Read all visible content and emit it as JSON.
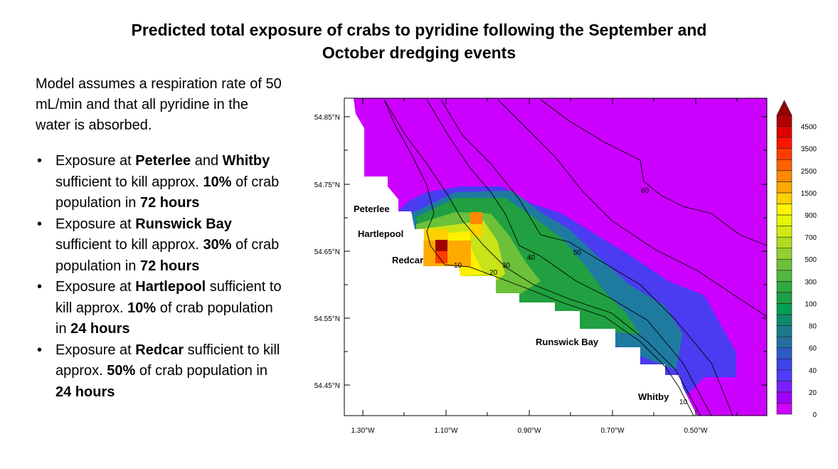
{
  "title": {
    "line1": "Predicted total exposure of crabs to pyridine following the September and",
    "line2": "October dredging events"
  },
  "intro": "Model assumes a respiration rate of 50 mL/min and that all pyridine in the water is absorbed.",
  "bullets": [
    [
      {
        "t": "Exposure at ",
        "b": false
      },
      {
        "t": "Peterlee",
        "b": true
      },
      {
        "t": " and ",
        "b": false
      },
      {
        "t": "Whitby",
        "b": true
      },
      {
        "t": " sufficient to kill approx. ",
        "b": false
      },
      {
        "t": "10%",
        "b": true
      },
      {
        "t": " of crab population in ",
        "b": false
      },
      {
        "t": "72 hours",
        "b": true
      }
    ],
    [
      {
        "t": "Exposure at ",
        "b": false
      },
      {
        "t": "Runswick Bay",
        "b": true
      },
      {
        "t": " sufficient to kill approx. ",
        "b": false
      },
      {
        "t": "30%",
        "b": true
      },
      {
        "t": " of crab population in ",
        "b": false
      },
      {
        "t": "72 hours",
        "b": true
      }
    ],
    [
      {
        "t": "Exposure at ",
        "b": false
      },
      {
        "t": "Hartlepool",
        "b": true
      },
      {
        "t": " sufficient to kill approx. ",
        "b": false
      },
      {
        "t": "10%",
        "b": true
      },
      {
        "t": " of crab population in ",
        "b": false
      },
      {
        "t": "24 hours",
        "b": true
      }
    ],
    [
      {
        "t": "Exposure at ",
        "b": false
      },
      {
        "t": "Redcar",
        "b": true
      },
      {
        "t": " sufficient to kill approx. ",
        "b": false
      },
      {
        "t": "50%",
        "b": true
      },
      {
        "t": " of crab population in ",
        "b": false
      },
      {
        "t": "24 hours",
        "b": true
      }
    ]
  ],
  "map": {
    "lat_ticks": [
      "54.85°N",
      "54.75°N",
      "54.65°N",
      "54.55°N",
      "54.45°N"
    ],
    "lon_ticks": [
      "1.30°W",
      "1.10°W",
      "0.90°W",
      "0.70°W",
      "0.50°W"
    ],
    "places": {
      "peterlee": "Peterlee",
      "hartlepool": "Hartlepool",
      "redcar": "Redcar",
      "runswick": "Runswick Bay",
      "whitby": "Whitby"
    },
    "contour_labels": {
      "c10": "10",
      "c20": "20",
      "c30": "30",
      "c40": "40",
      "c50": "50",
      "c60": "60",
      "c10b": "10"
    },
    "colorbar": {
      "labels": [
        "0",
        "20",
        "40",
        "60",
        "80",
        "100",
        "300",
        "500",
        "700",
        "900",
        "1500",
        "2500",
        "3500",
        "4500"
      ],
      "colors": [
        "#cc00ff",
        "#a000ff",
        "#7a1eff",
        "#4f3cff",
        "#3c46e6",
        "#2e5ac8",
        "#256ea0",
        "#1b7a8c",
        "#0e8a6e",
        "#00a050",
        "#1ea046",
        "#30a840",
        "#50b83c",
        "#6cc03a",
        "#90d030",
        "#b0dc20",
        "#d0ea10",
        "#e8f500",
        "#fff500",
        "#ffd000",
        "#ffaa00",
        "#ff8800",
        "#ff6000",
        "#ff3c00",
        "#ff1400",
        "#e00000",
        "#b40000"
      ],
      "overflow_color": "#960000"
    },
    "land_color": "#ffffff",
    "sea_background_color": "#cc00ff"
  }
}
